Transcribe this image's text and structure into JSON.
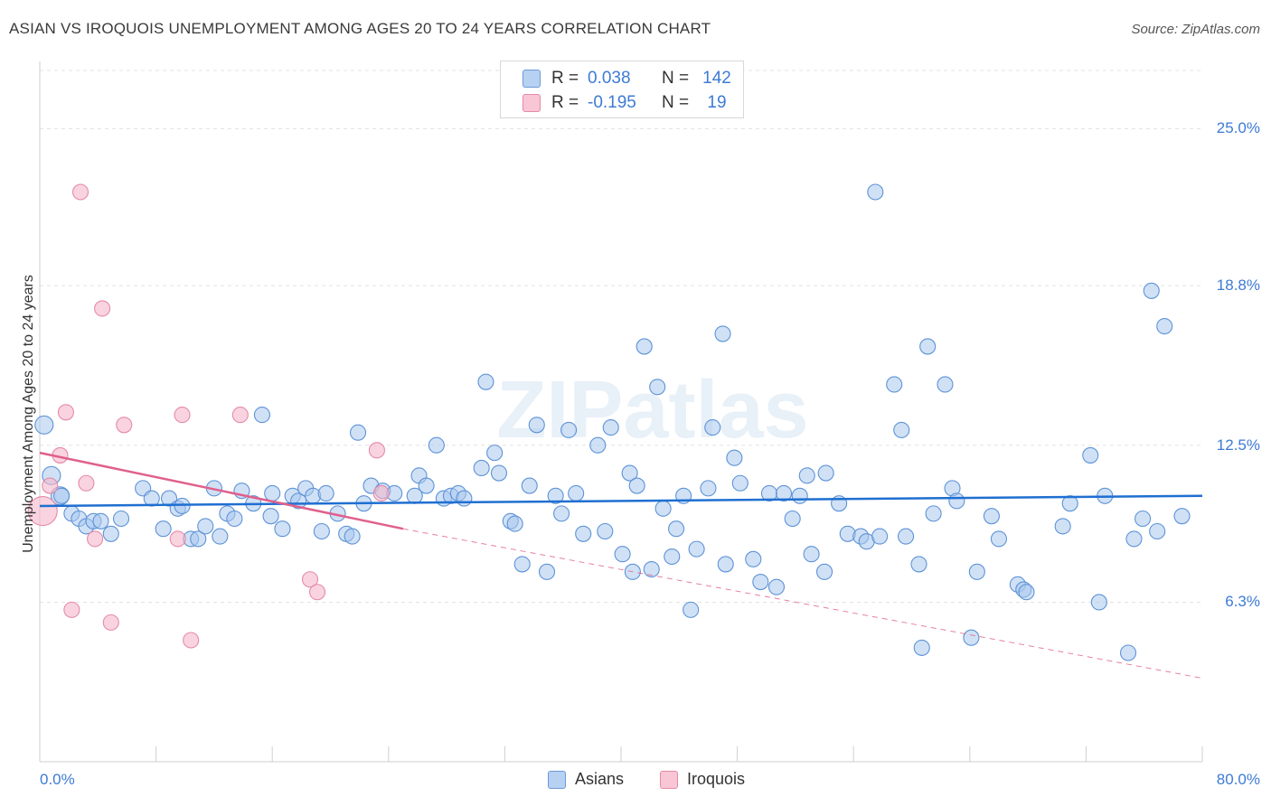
{
  "header": {
    "title": "ASIAN VS IROQUOIS UNEMPLOYMENT AMONG AGES 20 TO 24 YEARS CORRELATION CHART",
    "source": "Source: ZipAtlas.com"
  },
  "legend_top": {
    "rows": [
      {
        "r_label": "R =",
        "r_value": "0.038",
        "n_label": "N =",
        "n_value": "142"
      },
      {
        "r_label": "R =",
        "r_value": "-0.195",
        "n_label": "N =",
        "n_value": "19"
      }
    ]
  },
  "legend_bottom": {
    "items": [
      "Asians",
      "Iroquois"
    ]
  },
  "watermark": "ZIPatlas",
  "colors": {
    "asian_fill": "#aac8ee",
    "asian_line": "#1f6fd1",
    "iroquois_fill": "#f5b8cb",
    "iroquois_line": "#e0608c",
    "accent": "#3d7bd4"
  },
  "chart_data": {
    "type": "scatter",
    "title": "ASIAN VS IROQUOIS UNEMPLOYMENT AMONG AGES 20 TO 24 YEARS CORRELATION CHART",
    "xlabel": "",
    "ylabel": "Unemployment Among Ages 20 to 24 years",
    "xlim": [
      0,
      80
    ],
    "ylim": [
      0,
      27.3
    ],
    "x_tick_labels": [
      "0.0%",
      "80.0%"
    ],
    "y_ticks": [
      6.3,
      12.5,
      18.8,
      25.0
    ],
    "y_tick_labels": [
      "6.3%",
      "12.5%",
      "18.8%",
      "25.0%"
    ],
    "grid": true,
    "legend": "top-center",
    "series": [
      {
        "name": "Asians",
        "r": 0.038,
        "n": 142,
        "trend": {
          "x": [
            0,
            80
          ],
          "y": [
            10.1,
            10.5
          ]
        },
        "points": [
          [
            0.3,
            13.3
          ],
          [
            0.8,
            11.3
          ],
          [
            1.4,
            10.5
          ],
          [
            1.5,
            10.5
          ],
          [
            2.2,
            9.8
          ],
          [
            2.7,
            9.6
          ],
          [
            3.2,
            9.3
          ],
          [
            3.7,
            9.5
          ],
          [
            4.2,
            9.5
          ],
          [
            4.9,
            9.0
          ],
          [
            5.6,
            9.6
          ],
          [
            7.1,
            10.8
          ],
          [
            7.7,
            10.4
          ],
          [
            8.5,
            9.2
          ],
          [
            8.9,
            10.4
          ],
          [
            9.5,
            10.0
          ],
          [
            9.8,
            10.1
          ],
          [
            10.4,
            8.8
          ],
          [
            10.9,
            8.8
          ],
          [
            11.4,
            9.3
          ],
          [
            12.0,
            10.8
          ],
          [
            12.4,
            8.9
          ],
          [
            12.9,
            9.8
          ],
          [
            13.4,
            9.6
          ],
          [
            13.9,
            10.7
          ],
          [
            14.7,
            10.2
          ],
          [
            15.3,
            13.7
          ],
          [
            15.9,
            9.7
          ],
          [
            16.0,
            10.6
          ],
          [
            16.7,
            9.2
          ],
          [
            17.4,
            10.5
          ],
          [
            17.8,
            10.3
          ],
          [
            18.3,
            10.8
          ],
          [
            18.8,
            10.5
          ],
          [
            19.4,
            9.1
          ],
          [
            19.7,
            10.6
          ],
          [
            20.5,
            9.8
          ],
          [
            21.1,
            9.0
          ],
          [
            21.5,
            8.9
          ],
          [
            21.9,
            13.0
          ],
          [
            22.3,
            10.2
          ],
          [
            22.8,
            10.9
          ],
          [
            23.6,
            10.7
          ],
          [
            24.4,
            10.6
          ],
          [
            25.8,
            10.5
          ],
          [
            26.1,
            11.3
          ],
          [
            26.6,
            10.9
          ],
          [
            27.3,
            12.5
          ],
          [
            27.8,
            10.4
          ],
          [
            28.3,
            10.5
          ],
          [
            28.8,
            10.6
          ],
          [
            29.2,
            10.4
          ],
          [
            30.4,
            11.6
          ],
          [
            30.7,
            15.0
          ],
          [
            31.3,
            12.2
          ],
          [
            31.6,
            11.4
          ],
          [
            32.4,
            9.5
          ],
          [
            32.7,
            9.4
          ],
          [
            33.2,
            7.8
          ],
          [
            33.7,
            10.9
          ],
          [
            34.2,
            13.3
          ],
          [
            34.9,
            7.5
          ],
          [
            35.5,
            10.5
          ],
          [
            35.9,
            9.8
          ],
          [
            36.4,
            13.1
          ],
          [
            36.9,
            10.6
          ],
          [
            37.4,
            9.0
          ],
          [
            38.4,
            12.5
          ],
          [
            38.9,
            9.1
          ],
          [
            39.3,
            13.2
          ],
          [
            40.1,
            8.2
          ],
          [
            40.6,
            11.4
          ],
          [
            40.8,
            7.5
          ],
          [
            41.1,
            10.9
          ],
          [
            41.6,
            16.4
          ],
          [
            42.1,
            7.6
          ],
          [
            42.5,
            14.8
          ],
          [
            42.9,
            10.0
          ],
          [
            43.5,
            8.1
          ],
          [
            43.8,
            9.2
          ],
          [
            44.3,
            10.5
          ],
          [
            44.8,
            6.0
          ],
          [
            45.2,
            8.4
          ],
          [
            46.0,
            10.8
          ],
          [
            46.3,
            13.2
          ],
          [
            47.0,
            16.9
          ],
          [
            47.2,
            7.8
          ],
          [
            47.8,
            12.0
          ],
          [
            48.2,
            11.0
          ],
          [
            49.1,
            8.0
          ],
          [
            49.6,
            7.1
          ],
          [
            50.2,
            10.6
          ],
          [
            50.7,
            6.9
          ],
          [
            51.2,
            10.6
          ],
          [
            51.8,
            9.6
          ],
          [
            52.3,
            10.5
          ],
          [
            52.8,
            11.3
          ],
          [
            53.1,
            8.2
          ],
          [
            54.0,
            7.5
          ],
          [
            54.1,
            11.4
          ],
          [
            55.0,
            10.2
          ],
          [
            55.6,
            9.0
          ],
          [
            56.5,
            8.9
          ],
          [
            56.9,
            8.7
          ],
          [
            57.5,
            22.5
          ],
          [
            57.8,
            8.9
          ],
          [
            58.8,
            14.9
          ],
          [
            59.3,
            13.1
          ],
          [
            59.6,
            8.9
          ],
          [
            60.5,
            7.8
          ],
          [
            60.7,
            4.5
          ],
          [
            61.1,
            16.4
          ],
          [
            61.5,
            9.8
          ],
          [
            62.3,
            14.9
          ],
          [
            62.8,
            10.8
          ],
          [
            63.1,
            10.3
          ],
          [
            64.1,
            4.9
          ],
          [
            64.5,
            7.5
          ],
          [
            65.5,
            9.7
          ],
          [
            66.0,
            8.8
          ],
          [
            67.3,
            7.0
          ],
          [
            67.7,
            6.8
          ],
          [
            67.9,
            6.7
          ],
          [
            70.4,
            9.3
          ],
          [
            70.9,
            10.2
          ],
          [
            72.3,
            12.1
          ],
          [
            72.9,
            6.3
          ],
          [
            73.3,
            10.5
          ],
          [
            74.9,
            4.3
          ],
          [
            75.3,
            8.8
          ],
          [
            75.9,
            9.6
          ],
          [
            76.5,
            18.6
          ],
          [
            76.9,
            9.1
          ],
          [
            77.4,
            17.2
          ],
          [
            78.6,
            9.7
          ]
        ]
      },
      {
        "name": "Iroquois",
        "r": -0.195,
        "n": 19,
        "trend": {
          "solid_x": [
            0,
            25
          ],
          "solid_y": [
            12.2,
            9.2
          ],
          "dashed_x": [
            25,
            80
          ],
          "dashed_y": [
            9.2,
            3.3
          ]
        },
        "points": [
          [
            0.2,
            9.9
          ],
          [
            0.7,
            10.9
          ],
          [
            1.4,
            12.1
          ],
          [
            1.8,
            13.8
          ],
          [
            2.2,
            6.0
          ],
          [
            2.8,
            22.5
          ],
          [
            3.2,
            11.0
          ],
          [
            3.8,
            8.8
          ],
          [
            4.3,
            17.9
          ],
          [
            4.9,
            5.5
          ],
          [
            5.8,
            13.3
          ],
          [
            9.5,
            8.8
          ],
          [
            9.8,
            13.7
          ],
          [
            10.4,
            4.8
          ],
          [
            13.8,
            13.7
          ],
          [
            18.6,
            7.2
          ],
          [
            19.1,
            6.7
          ],
          [
            23.2,
            12.3
          ],
          [
            23.5,
            10.6
          ]
        ]
      }
    ]
  }
}
